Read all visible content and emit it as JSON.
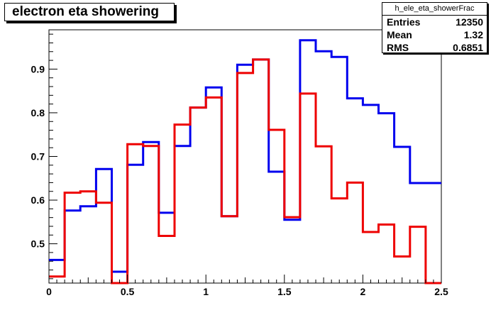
{
  "title": "electron eta showering",
  "stats": {
    "name": "h_ele_eta_showerFrac",
    "rows": [
      {
        "label": "Entries",
        "value": "12350"
      },
      {
        "label": "Mean",
        "value": "1.32"
      },
      {
        "label": "RMS",
        "value": "0.6851"
      }
    ]
  },
  "chart_data": {
    "type": "line",
    "title": "electron eta showering",
    "xlabel": "",
    "ylabel": "",
    "xlim": [
      0,
      2.5
    ],
    "ylim": [
      0.41,
      0.99
    ],
    "x_ticks": [
      "0",
      "0.5",
      "1",
      "1.5",
      "2",
      "2.5"
    ],
    "y_ticks": [
      "0.5",
      "0.6",
      "0.7",
      "0.8",
      "0.9"
    ],
    "grid": false,
    "bin_edges": [
      0,
      0.1,
      0.2,
      0.3,
      0.4,
      0.5,
      0.6,
      0.7,
      0.8,
      0.9,
      1.0,
      1.1,
      1.2,
      1.3,
      1.4,
      1.5,
      1.6,
      1.7,
      1.8,
      1.9,
      2.0,
      2.1,
      2.2,
      2.3,
      2.4,
      2.5
    ],
    "series": [
      {
        "color": "#0000ee",
        "values": [
          0.463,
          0.576,
          0.586,
          0.671,
          0.436,
          0.681,
          0.733,
          0.571,
          0.724,
          0.812,
          0.858,
          0.563,
          0.91,
          0.922,
          0.665,
          0.555,
          0.966,
          0.941,
          0.928,
          0.833,
          0.818,
          0.799,
          0.722,
          0.639,
          0.639
        ]
      },
      {
        "color": "#ee0000",
        "values": [
          0.425,
          0.617,
          0.62,
          0.594,
          0.41,
          0.728,
          0.724,
          0.518,
          0.773,
          0.812,
          0.835,
          0.563,
          0.891,
          0.922,
          0.761,
          0.561,
          0.844,
          0.723,
          0.604,
          0.64,
          0.527,
          0.544,
          0.471,
          0.539,
          0.41
        ]
      }
    ]
  }
}
